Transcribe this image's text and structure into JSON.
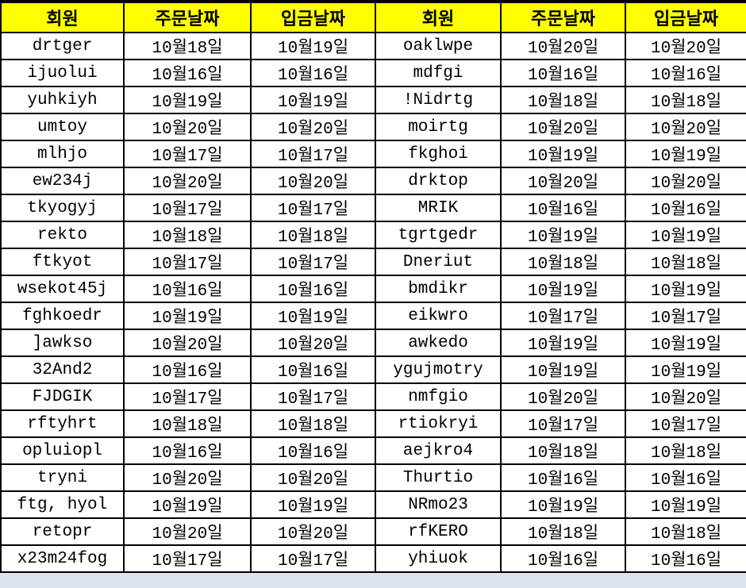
{
  "colors": {
    "header_bg": "#FFFF00",
    "border": "#000000",
    "text": "#000000",
    "row_bg": "#FFFFFF"
  },
  "header": {
    "columns": [
      "회원",
      "주문날짜",
      "입금날짜",
      "회원",
      "주문날짜",
      "입금날짜"
    ]
  },
  "table": {
    "rows": [
      [
        "drtger",
        "10월18일",
        "10월19일",
        "oaklwpe",
        "10월20일",
        "10월20일"
      ],
      [
        "ijuolui",
        "10월16일",
        "10월16일",
        "mdfgi",
        "10월16일",
        "10월16일"
      ],
      [
        "yuhkiyh",
        "10월19일",
        "10월19일",
        "!Nidrtg",
        "10월18일",
        "10월18일"
      ],
      [
        "umtoy",
        "10월20일",
        "10월20일",
        "moirtg",
        "10월20일",
        "10월20일"
      ],
      [
        "mlhjo",
        "10월17일",
        "10월17일",
        "fkghoi",
        "10월19일",
        "10월19일"
      ],
      [
        "ew234j",
        "10월20일",
        "10월20일",
        "drktop",
        "10월20일",
        "10월20일"
      ],
      [
        "tkyogyj",
        "10월17일",
        "10월17일",
        "MRIK",
        "10월16일",
        "10월16일"
      ],
      [
        "rekto",
        "10월18일",
        "10월18일",
        "tgrtgedr",
        "10월19일",
        "10월19일"
      ],
      [
        "ftkyot",
        "10월17일",
        "10월17일",
        "Dneriut",
        "10월18일",
        "10월18일"
      ],
      [
        "wsekot45j",
        "10월16일",
        "10월16일",
        "bmdikr",
        "10월19일",
        "10월19일"
      ],
      [
        "fghkoedr",
        "10월19일",
        "10월19일",
        "eikwro",
        "10월17일",
        "10월17일"
      ],
      [
        "]awkso",
        "10월20일",
        "10월20일",
        "awkedo",
        "10월19일",
        "10월19일"
      ],
      [
        "32And2",
        "10월16일",
        "10월16일",
        "ygujmotry",
        "10월19일",
        "10월19일"
      ],
      [
        "FJDGIK",
        "10월17일",
        "10월17일",
        "nmfgio",
        "10월20일",
        "10월20일"
      ],
      [
        "rftyhrt",
        "10월18일",
        "10월18일",
        "rtiokryi",
        "10월17일",
        "10월17일"
      ],
      [
        "opluiopl",
        "10월16일",
        "10월16일",
        "aejkro4",
        "10월18일",
        "10월18일"
      ],
      [
        "tryni",
        "10월20일",
        "10월20일",
        "Thurtio",
        "10월16일",
        "10월16일"
      ],
      [
        "ftg, hyol",
        "10월19일",
        "10월19일",
        "NRmo23",
        "10월19일",
        "10월19일"
      ],
      [
        "retopr",
        "10월20일",
        "10월20일",
        "rfKERO",
        "10월18일",
        "10월18일"
      ],
      [
        "x23m24fog",
        "10월17일",
        "10월17일",
        "yhiuok",
        "10월16일",
        "10월16일"
      ]
    ]
  }
}
